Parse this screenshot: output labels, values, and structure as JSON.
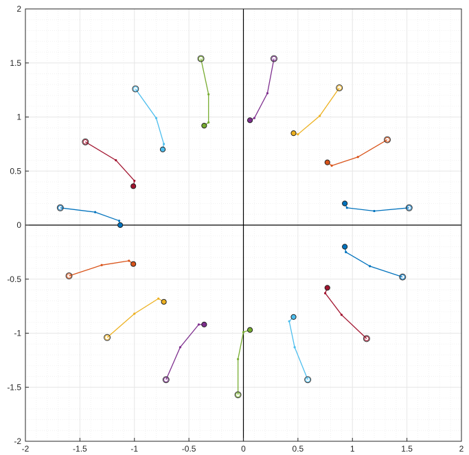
{
  "chart_data": {
    "type": "line",
    "title": "",
    "xlabel": "",
    "ylabel": "",
    "xlim": [
      -2,
      2
    ],
    "ylim": [
      -2,
      2
    ],
    "grid": true,
    "minor_grid": true,
    "zero_axes": true,
    "x_ticks": [
      "-2",
      "-1.5",
      "-1",
      "-0.5",
      "0",
      "0.5",
      "1",
      "1.5",
      "2"
    ],
    "y_ticks": [
      "2",
      "1.5",
      "1",
      "0.5",
      "0",
      "-0.5",
      "-1",
      "-1.5",
      "-2"
    ],
    "colors": {
      "blue": "#0072BD",
      "orange": "#D95319",
      "yellow": "#EDB120",
      "purple": "#7E2F8E",
      "green": "#77AC30",
      "cyan": "#4DBEEE",
      "red": "#A2142F",
      "grid": "#e6e6e6",
      "axis": "#262626"
    },
    "series": [
      {
        "color": "#0072BD",
        "points": [
          [
            1.52,
            0.16
          ],
          [
            1.2,
            0.13
          ],
          [
            0.95,
            0.16
          ],
          [
            0.93,
            0.2
          ]
        ]
      },
      {
        "color": "#D95319",
        "points": [
          [
            1.32,
            0.79
          ],
          [
            1.05,
            0.63
          ],
          [
            0.81,
            0.55
          ],
          [
            0.77,
            0.58
          ]
        ]
      },
      {
        "color": "#EDB120",
        "points": [
          [
            0.88,
            1.27
          ],
          [
            0.7,
            1.01
          ],
          [
            0.5,
            0.84
          ],
          [
            0.46,
            0.85
          ]
        ]
      },
      {
        "color": "#7E2F8E",
        "points": [
          [
            0.28,
            1.54
          ],
          [
            0.22,
            1.22
          ],
          [
            0.1,
            0.99
          ],
          [
            0.06,
            0.97
          ]
        ]
      },
      {
        "color": "#77AC30",
        "points": [
          [
            -0.39,
            1.54
          ],
          [
            -0.32,
            1.21
          ],
          [
            -0.32,
            0.95
          ],
          [
            -0.36,
            0.92
          ]
        ]
      },
      {
        "color": "#4DBEEE",
        "points": [
          [
            -0.99,
            1.26
          ],
          [
            -0.8,
            0.99
          ],
          [
            -0.73,
            0.75
          ],
          [
            -0.74,
            0.7
          ]
        ]
      },
      {
        "color": "#A2142F",
        "points": [
          [
            -1.45,
            0.77
          ],
          [
            -1.17,
            0.6
          ],
          [
            -1.0,
            0.41
          ],
          [
            -1.01,
            0.36
          ]
        ]
      },
      {
        "color": "#0072BD",
        "points": [
          [
            -1.68,
            0.16
          ],
          [
            -1.36,
            0.12
          ],
          [
            -1.14,
            0.04
          ],
          [
            -1.13,
            0.0
          ]
        ]
      },
      {
        "color": "#D95319",
        "points": [
          [
            -1.6,
            -0.47
          ],
          [
            -1.3,
            -0.37
          ],
          [
            -1.05,
            -0.33
          ],
          [
            -1.01,
            -0.36
          ]
        ]
      },
      {
        "color": "#EDB120",
        "points": [
          [
            -1.25,
            -1.04
          ],
          [
            -1.0,
            -0.82
          ],
          [
            -0.78,
            -0.68
          ],
          [
            -0.73,
            -0.71
          ]
        ]
      },
      {
        "color": "#7E2F8E",
        "points": [
          [
            -0.71,
            -1.43
          ],
          [
            -0.58,
            -1.13
          ],
          [
            -0.41,
            -0.92
          ],
          [
            -0.36,
            -0.92
          ]
        ]
      },
      {
        "color": "#77AC30",
        "points": [
          [
            -0.05,
            -1.57
          ],
          [
            -0.05,
            -1.24
          ],
          [
            0.0,
            -0.99
          ],
          [
            0.06,
            -0.97
          ]
        ]
      },
      {
        "color": "#4DBEEE",
        "points": [
          [
            0.59,
            -1.43
          ],
          [
            0.47,
            -1.13
          ],
          [
            0.42,
            -0.89
          ],
          [
            0.46,
            -0.85
          ]
        ]
      },
      {
        "color": "#A2142F",
        "points": [
          [
            1.13,
            -1.05
          ],
          [
            0.9,
            -0.83
          ],
          [
            0.75,
            -0.63
          ],
          [
            0.77,
            -0.58
          ]
        ]
      },
      {
        "color": "#0072BD",
        "points": [
          [
            1.46,
            -0.48
          ],
          [
            1.16,
            -0.38
          ],
          [
            0.94,
            -0.25
          ],
          [
            0.93,
            -0.2
          ]
        ]
      }
    ]
  }
}
